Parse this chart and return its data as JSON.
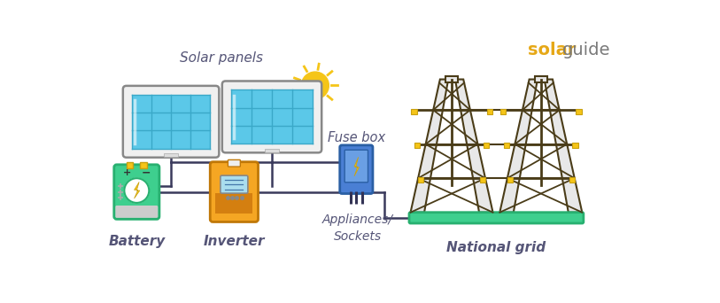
{
  "bg_color": "#ffffff",
  "title_solar": "solar",
  "title_guide": "guide",
  "title_solar_color": "#e6a817",
  "title_guide_color": "#7a7a7a",
  "label_solar_panels": "Solar panels",
  "label_battery": "Battery",
  "label_inverter": "Inverter",
  "label_fuse_box": "Fuse box",
  "label_appliances": "Appliances/\nSockets",
  "label_national_grid": "National grid",
  "solar_panel_blue": "#5bc8e8",
  "solar_panel_frame": "#f0f0f0",
  "solar_panel_grid": "#3aa8c8",
  "battery_green": "#3ecf8e",
  "battery_terminal_yellow": "#f5c518",
  "battery_bolt_yellow": "#f5c518",
  "inverter_orange": "#f5a623",
  "inverter_dark_orange": "#d47f10",
  "inverter_screen_blue": "#5bc8e8",
  "fuse_blue": "#4a7fd4",
  "fuse_light_blue": "#6a9fe4",
  "fuse_bolt_yellow": "#f5c518",
  "fuse_border": "#2a5fa4",
  "grid_brown": "#4a3c18",
  "grid_leg_white": "#e8e8e8",
  "grid_green_base": "#3ecf8e",
  "sun_yellow": "#f5c518",
  "wire_color": "#3a3a5c",
  "label_color": "#555577",
  "label_fontsize": 9.5,
  "title_fontsize": 14,
  "panel_border_color": "#888888",
  "battery_border": "#28b070"
}
